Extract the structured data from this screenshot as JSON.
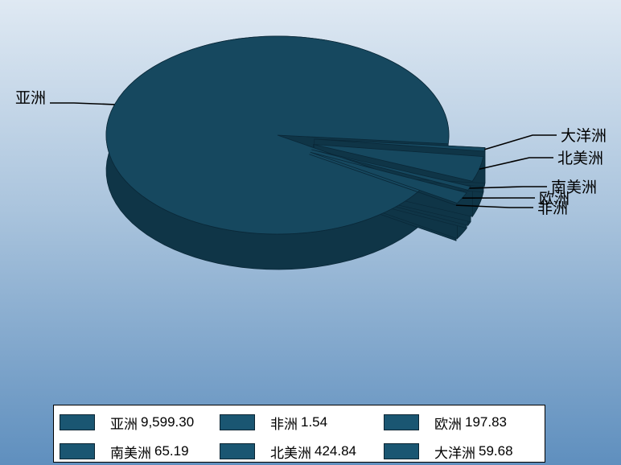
{
  "chart_data": {
    "type": "pie",
    "title": "",
    "slices": [
      {
        "label": "亚洲",
        "value": 9599.3,
        "value_label": "9,599.30"
      },
      {
        "label": "非洲",
        "value": 1.54,
        "value_label": "1.54"
      },
      {
        "label": "欧洲",
        "value": 197.83,
        "value_label": "197.83"
      },
      {
        "label": "南美洲",
        "value": 65.19,
        "value_label": "65.19"
      },
      {
        "label": "北美洲",
        "value": 424.84,
        "value_label": "424.84"
      },
      {
        "label": "大洋洲",
        "value": 59.68,
        "value_label": "59.68"
      }
    ],
    "legend_position": "bottom",
    "style": "3d",
    "colors": {
      "face": "#16485f",
      "side": "#0f3547",
      "edge": "#0a2838"
    }
  }
}
